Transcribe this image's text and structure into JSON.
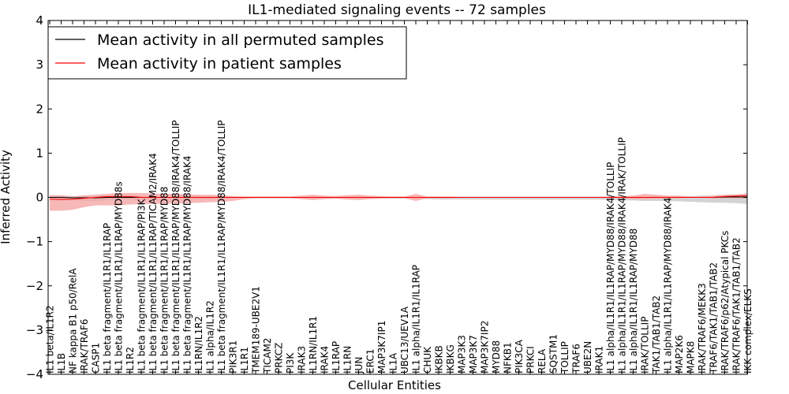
{
  "chart_data": {
    "type": "line",
    "title": "IL1-mediated signaling events -- 72 samples",
    "xlabel": "Cellular Entities",
    "ylabel": "Inferred Activity",
    "ylim": [
      -4,
      4
    ],
    "yticks": [
      4,
      3,
      2,
      1,
      0,
      -1,
      -2,
      -3,
      -4
    ],
    "ytick_labels": [
      "4",
      "3",
      "2",
      "1",
      "0",
      "−1",
      "−2",
      "−3",
      "−4"
    ],
    "legend": {
      "placement": "top-left"
    },
    "categories": [
      "IL1 beta/IL1R2",
      "IL1B",
      "NF kappa B1 p50/RelA",
      "IRAK/TRAF6",
      "CASP1",
      "IL1 beta fragment/IL1R1/IL1RAP",
      "IL1 beta fragment/IL1R1/IL1RAP/MYD88s",
      "IL1R2",
      "IL1 beta fragment/IL1R1/IL1RAP/PI3K",
      "IL1 beta fragment/IL1R1/IL1RAP/TICAM2/IRAK4",
      "IL1 beta fragment/IL1R1/IL1RAP/MYD88",
      "IL1 beta fragment/IL1R1/IL1RAP/MYD88/IRAK4/TOLLIP",
      "IL1 beta fragment/IL1R1/IL1RAP/MYD88/IRAK4",
      "IL1RN/IL1R2",
      "IL1 alpha/IL1R2",
      "IL1 beta fragment/IL1R1/IL1RAP/MYD88/IRAK4/TOLLIP",
      "PIK3R1",
      "IL1R1",
      "TMEM189-UBE2V1",
      "TICAM2",
      "PRKCZ",
      "PI3K",
      "IRAK3",
      "IL1RN/IL1R1",
      "IRAK4",
      "IL1RAP",
      "IL1RN",
      "JUN",
      "ERC1",
      "MAP3K7IP1",
      "IL1A",
      "UBC13/UEV1A",
      "IL1 alpha/IL1R1/IL1RAP",
      "CHUK",
      "IKBKB",
      "IKBKG",
      "MAP3K3",
      "MAP3K7",
      "MAP3K7IP2",
      "MYD88",
      "NFKB1",
      "PIK3CA",
      "PRKCI",
      "RELA",
      "SQSTM1",
      "TOLLIP",
      "TRAF6",
      "UBE2N",
      "IRAK1",
      "IL1 alpha/IL1R1/IL1RAP/MYD88/IRAK4/TOLLIP",
      "IL1 alpha/IL1R1/IL1RAP/MYD88/IRAK4/IRAK/TOLLIP",
      "IL1 alpha/IL1R1/IL1RAP/MYD88",
      "IRAK/TOLLIP",
      "TAK1/TAB1/TAB2",
      "IL1 alpha/IL1R1/IL1RAP/MYD88/IRAK4",
      "MAP2K6",
      "MAPK8",
      "IRAK/TRAF6/MEKK3",
      "TRAF6/TAK1/TAB1/TAB2",
      "IRAK/TRAF6/p62/Atypical PKCs",
      "IRAK/TRAF6/TAK1/TAB1/TAB2",
      "IKK complex/ELKS"
    ],
    "series": [
      {
        "name": "Mean activity in all permuted samples",
        "color": "#000000",
        "band_color": "#c8c8c8",
        "values": [
          0.0,
          0.0,
          -0.01,
          -0.01,
          -0.01,
          0.0,
          0.0,
          0.0,
          0.0,
          0.0,
          0.0,
          0.0,
          0.0,
          0.0,
          0.0,
          0.0,
          0.0,
          0.0,
          0.0,
          0.0,
          0.0,
          0.0,
          0.0,
          0.0,
          0.0,
          0.0,
          0.0,
          0.0,
          0.0,
          0.0,
          0.0,
          0.0,
          0.0,
          0.0,
          0.0,
          0.0,
          0.0,
          0.0,
          0.0,
          0.0,
          0.0,
          0.0,
          0.0,
          0.0,
          0.0,
          0.0,
          0.0,
          0.0,
          0.0,
          0.0,
          0.0,
          0.0,
          0.0,
          0.0,
          0.0,
          0.0,
          0.0,
          0.0,
          0.0,
          0.01,
          0.01,
          0.01
        ],
        "lower": [
          -0.06,
          -0.05,
          -0.07,
          -0.08,
          -0.08,
          -0.06,
          -0.05,
          -0.05,
          -0.05,
          -0.05,
          -0.05,
          -0.05,
          -0.05,
          -0.05,
          -0.04,
          -0.04,
          -0.02,
          -0.02,
          -0.02,
          -0.02,
          -0.02,
          -0.02,
          -0.02,
          -0.03,
          -0.03,
          -0.03,
          -0.03,
          -0.03,
          -0.03,
          -0.03,
          -0.03,
          -0.03,
          -0.03,
          -0.04,
          -0.05,
          -0.05,
          -0.05,
          -0.05,
          -0.05,
          -0.05,
          -0.05,
          -0.05,
          -0.05,
          -0.05,
          -0.05,
          -0.05,
          -0.05,
          -0.05,
          -0.05,
          -0.06,
          -0.07,
          -0.07,
          -0.08,
          -0.08,
          -0.08,
          -0.09,
          -0.1,
          -0.11,
          -0.12,
          -0.12,
          -0.13,
          -0.15
        ],
        "upper": [
          0.04,
          0.04,
          0.03,
          0.03,
          0.03,
          0.03,
          0.03,
          0.03,
          0.03,
          0.03,
          0.03,
          0.03,
          0.03,
          0.03,
          0.03,
          0.03,
          0.02,
          0.02,
          0.02,
          0.02,
          0.02,
          0.02,
          0.02,
          0.02,
          0.02,
          0.02,
          0.02,
          0.02,
          0.02,
          0.02,
          0.02,
          0.02,
          0.02,
          0.02,
          0.02,
          0.02,
          0.02,
          0.02,
          0.02,
          0.02,
          0.02,
          0.02,
          0.02,
          0.02,
          0.02,
          0.02,
          0.02,
          0.02,
          0.02,
          0.02,
          0.03,
          0.03,
          0.03,
          0.03,
          0.03,
          0.03,
          0.03,
          0.04,
          0.04,
          0.05,
          0.05,
          0.05
        ]
      },
      {
        "name": "Mean activity in patient samples",
        "color": "#ff0000",
        "band_color": "#f4a0a0",
        "values": [
          -0.04,
          -0.05,
          -0.04,
          -0.02,
          0.0,
          0.02,
          0.02,
          0.02,
          0.0,
          0.0,
          0.0,
          0.0,
          0.0,
          0.0,
          0.0,
          0.0,
          0.0,
          0.0,
          0.0,
          0.0,
          0.0,
          0.0,
          0.0,
          0.0,
          0.0,
          0.0,
          0.0,
          0.0,
          0.0,
          0.0,
          0.0,
          0.0,
          0.0,
          0.0,
          0.0,
          0.0,
          0.0,
          0.0,
          0.0,
          0.0,
          0.0,
          0.0,
          0.0,
          0.0,
          0.0,
          0.0,
          0.0,
          0.0,
          0.0,
          0.0,
          0.0,
          0.0,
          0.0,
          0.0,
          0.0,
          0.0,
          0.0,
          0.0,
          0.0,
          0.02,
          0.03,
          0.04
        ],
        "lower": [
          -0.3,
          -0.3,
          -0.28,
          -0.22,
          -0.18,
          -0.18,
          -0.18,
          -0.16,
          -0.15,
          -0.15,
          -0.14,
          -0.14,
          -0.13,
          -0.12,
          -0.11,
          -0.1,
          -0.08,
          -0.04,
          -0.02,
          -0.02,
          -0.02,
          -0.02,
          -0.04,
          -0.06,
          -0.04,
          -0.03,
          -0.05,
          -0.06,
          -0.04,
          -0.03,
          -0.02,
          -0.02,
          -0.08,
          -0.02,
          -0.02,
          -0.02,
          -0.01,
          -0.01,
          -0.01,
          -0.01,
          -0.01,
          -0.01,
          -0.01,
          -0.01,
          -0.01,
          -0.01,
          -0.01,
          -0.01,
          -0.01,
          -0.02,
          -0.02,
          -0.04,
          -0.04,
          -0.03,
          -0.02,
          -0.02,
          -0.01,
          -0.01,
          -0.02,
          -0.02,
          -0.02,
          -0.02
        ],
        "upper": [
          0.05,
          0.05,
          0.02,
          0.05,
          0.06,
          0.08,
          0.1,
          0.1,
          0.1,
          0.09,
          0.08,
          0.08,
          0.07,
          0.06,
          0.06,
          0.05,
          0.03,
          0.02,
          0.02,
          0.02,
          0.02,
          0.02,
          0.04,
          0.06,
          0.04,
          0.03,
          0.05,
          0.06,
          0.04,
          0.03,
          0.02,
          0.02,
          0.08,
          0.02,
          0.02,
          0.02,
          0.01,
          0.01,
          0.01,
          0.01,
          0.01,
          0.01,
          0.01,
          0.01,
          0.01,
          0.01,
          0.01,
          0.01,
          0.01,
          0.02,
          0.02,
          0.04,
          0.08,
          0.06,
          0.04,
          0.04,
          0.02,
          0.02,
          0.04,
          0.06,
          0.07,
          0.09
        ]
      }
    ]
  }
}
